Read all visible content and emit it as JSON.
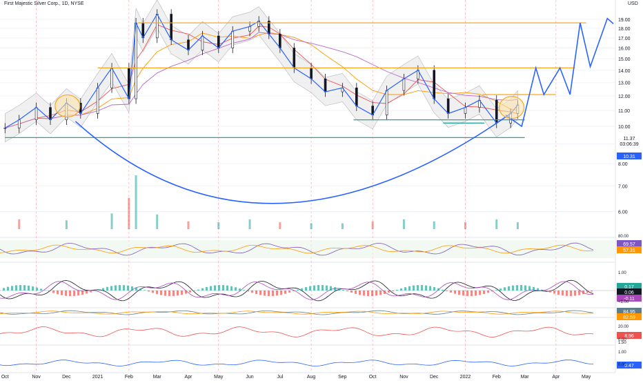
{
  "header": {
    "symbol": "First Majestic Silver Corp., 1D, NYSE",
    "currency": "USD"
  },
  "chart_data": {
    "type": "candlestick",
    "title": "First Majestic Silver Corp., 1D, NYSE",
    "y_scale": "log",
    "ylim": [
      5.4,
      20.3
    ],
    "price_ticks": [
      6.0,
      7.0,
      8.0,
      9.0,
      10.0,
      11.0,
      12.0,
      13.0,
      14.0,
      15.0,
      16.0,
      17.0,
      18.0,
      19.0
    ],
    "x_ticks": [
      "Oct",
      "Nov",
      "Dec",
      "2021",
      "Feb",
      "Mar",
      "Apr",
      "May",
      "Jun",
      "Jul",
      "Aug",
      "Sep",
      "Oct",
      "Nov",
      "Dec",
      "2022",
      "Feb",
      "Mar",
      "Apr",
      "May"
    ],
    "price_badges": [
      {
        "label": "11.37",
        "bg": "#ffffff",
        "fg": "#131722"
      },
      {
        "label": "03:06:39",
        "bg": "#ffffff",
        "fg": "#131722"
      },
      {
        "label": "10.31",
        "bg": "#2962ff",
        "fg": "#ffffff"
      }
    ],
    "horizontal_levels": [
      {
        "price": 18.6,
        "color": "#f5a623",
        "from": "2021-02-10",
        "to": "2022-05-01"
      },
      {
        "price": 14.2,
        "color": "#f5a623",
        "from": "2021-01-01",
        "to": "2022-04-20"
      },
      {
        "price": 12.1,
        "color": "#f5a623",
        "from": "2022-01-18",
        "to": "2022-04-01"
      },
      {
        "price": 10.4,
        "color": "#26a69a",
        "from": "2021-09-12",
        "to": "2022-03-01"
      },
      {
        "price": 10.2,
        "color": "#26a69a",
        "from": "2021-12-10",
        "to": "2022-01-20"
      },
      {
        "price": 9.35,
        "color": "#26a69a",
        "from": "2020-10-01",
        "to": "2022-03-01"
      }
    ],
    "cup_curve": {
      "color": "#2962ff",
      "points": [
        [
          "2020-12-10",
          10.3
        ],
        [
          "2021-06-28",
          6.3
        ],
        [
          "2022-02-15",
          10.8
        ]
      ]
    },
    "projection": {
      "color": "#2962ff",
      "points": [
        [
          "2022-02-10",
          10.7
        ],
        [
          "2022-02-26",
          10.0
        ],
        [
          "2022-03-12",
          14.2
        ],
        [
          "2022-03-20",
          12.1
        ],
        [
          "2022-04-05",
          14.2
        ],
        [
          "2022-04-15",
          12.1
        ],
        [
          "2022-04-25",
          18.6
        ],
        [
          "2022-05-05",
          14.3
        ],
        [
          "2022-05-22",
          19.1
        ],
        [
          "2022-05-28",
          18.5
        ]
      ]
    },
    "highlight_ellipses": [
      {
        "center": [
          "2020-12-02",
          11.3
        ],
        "color": "#f5a623"
      },
      {
        "center": [
          "2022-02-16",
          11.2
        ],
        "color": "#f5a623"
      }
    ],
    "series": [
      {
        "name": "Price",
        "dates": [
          "2020-10-01",
          "2020-10-15",
          "2020-11-01",
          "2020-11-15",
          "2020-12-01",
          "2020-12-15",
          "2021-01-01",
          "2021-01-15",
          "2021-02-01",
          "2021-02-08",
          "2021-02-15",
          "2021-03-01",
          "2021-03-15",
          "2021-04-01",
          "2021-04-15",
          "2021-05-01",
          "2021-05-15",
          "2021-06-01",
          "2021-06-10",
          "2021-06-20",
          "2021-07-01",
          "2021-07-15",
          "2021-08-01",
          "2021-08-15",
          "2021-09-01",
          "2021-09-15",
          "2021-10-01",
          "2021-10-15",
          "2021-11-01",
          "2021-11-15",
          "2021-12-01",
          "2021-12-15",
          "2022-01-01",
          "2022-01-15",
          "2022-02-01",
          "2022-02-15",
          "2022-02-22"
        ],
        "values": [
          9.9,
          10.4,
          11.2,
          10.4,
          11.5,
          10.8,
          12.6,
          14.2,
          11.8,
          18.6,
          17.0,
          19.6,
          16.8,
          15.8,
          17.2,
          16.0,
          17.7,
          18.2,
          18.8,
          17.4,
          16.0,
          14.2,
          13.3,
          12.3,
          12.6,
          11.3,
          10.7,
          12.4,
          13.3,
          14.0,
          11.8,
          10.8,
          11.2,
          11.7,
          10.2,
          10.8,
          11.37
        ]
      }
    ],
    "volume": {
      "dates": [
        "2020-10-15",
        "2020-12-01",
        "2021-01-15",
        "2021-02-01",
        "2021-02-08",
        "2021-03-01",
        "2021-04-01",
        "2021-05-01",
        "2021-06-01",
        "2021-07-01",
        "2021-08-01",
        "2021-09-01",
        "2021-10-01",
        "2021-11-01",
        "2021-12-01",
        "2022-01-01",
        "2022-02-01",
        "2022-02-22"
      ],
      "values": [
        1.0,
        0.9,
        1.6,
        3.2,
        5.5,
        1.5,
        0.8,
        0.7,
        1.0,
        0.7,
        0.6,
        0.6,
        0.8,
        1.0,
        0.8,
        0.7,
        1.0,
        0.7
      ]
    },
    "indicator_badges": [
      {
        "label": "69.57",
        "bg": "#7e57c2",
        "fg": "#ffffff"
      },
      {
        "label": "57.31",
        "bg": "#ff9800",
        "fg": "#ffffff"
      },
      {
        "label": "0.17",
        "bg": "#26a69a",
        "fg": "#ffffff"
      },
      {
        "label": "0.06",
        "bg": "#131722",
        "fg": "#ffffff"
      },
      {
        "label": "-0.11",
        "bg": "#ab47bc",
        "fg": "#ffffff"
      },
      {
        "label": "84.95",
        "bg": "#607d8b",
        "fg": "#ffffff"
      },
      {
        "label": "82.59",
        "bg": "#ff9800",
        "fg": "#ffffff"
      },
      {
        "label": "8.96",
        "bg": "#ef5350",
        "fg": "#ffffff"
      },
      {
        "label": "0.47",
        "bg": "#2962ff",
        "fg": "#ffffff"
      }
    ],
    "panel_ticks": [
      "80.00",
      "1.00",
      "<1.00",
      "20.00",
      "0.00",
      "1.50",
      "1.00",
      "0.00"
    ]
  }
}
